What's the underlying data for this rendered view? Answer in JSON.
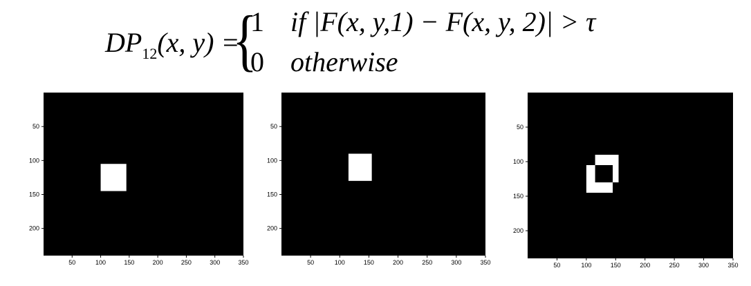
{
  "formula": {
    "lhs_main": "DP",
    "lhs_sub": "12",
    "lhs_args": "(x, y) =",
    "case1_value": "1",
    "case1_condition": "if |F(x, y,1) − F(x, y, 2)| > τ",
    "case2_value": "0",
    "case2_condition": "otherwise"
  },
  "panels": [
    {
      "x_range": [
        0,
        350
      ],
      "y_range": [
        0,
        240
      ],
      "x_ticks": [
        "50",
        "100",
        "150",
        "200",
        "250",
        "300",
        "350"
      ],
      "y_ticks": [
        "50",
        "100",
        "150",
        "200"
      ],
      "background_color": "#000000",
      "foreground_color": "#ffffff",
      "white_regions": [
        {
          "x": [
            100,
            145
          ],
          "y": [
            105,
            145
          ]
        }
      ]
    },
    {
      "x_range": [
        0,
        350
      ],
      "y_range": [
        0,
        240
      ],
      "x_ticks": [
        "50",
        "100",
        "150",
        "200",
        "250",
        "300",
        "350"
      ],
      "y_ticks": [
        "50",
        "100",
        "150",
        "200"
      ],
      "background_color": "#000000",
      "foreground_color": "#ffffff",
      "white_regions": [
        {
          "x": [
            115,
            155
          ],
          "y": [
            90,
            130
          ]
        }
      ]
    },
    {
      "x_range": [
        0,
        350
      ],
      "y_range": [
        0,
        240
      ],
      "x_ticks": [
        "50",
        "100",
        "150",
        "200",
        "250",
        "300",
        "350"
      ],
      "y_ticks": [
        "50",
        "100",
        "150",
        "200"
      ],
      "background_color": "#000000",
      "foreground_color": "#ffffff",
      "white_regions": [
        {
          "x": [
            100,
            145
          ],
          "y": [
            105,
            145
          ]
        },
        {
          "x": [
            115,
            155
          ],
          "y": [
            90,
            130
          ]
        }
      ],
      "black_regions": [
        {
          "x": [
            115,
            145
          ],
          "y": [
            105,
            130
          ]
        }
      ]
    }
  ]
}
